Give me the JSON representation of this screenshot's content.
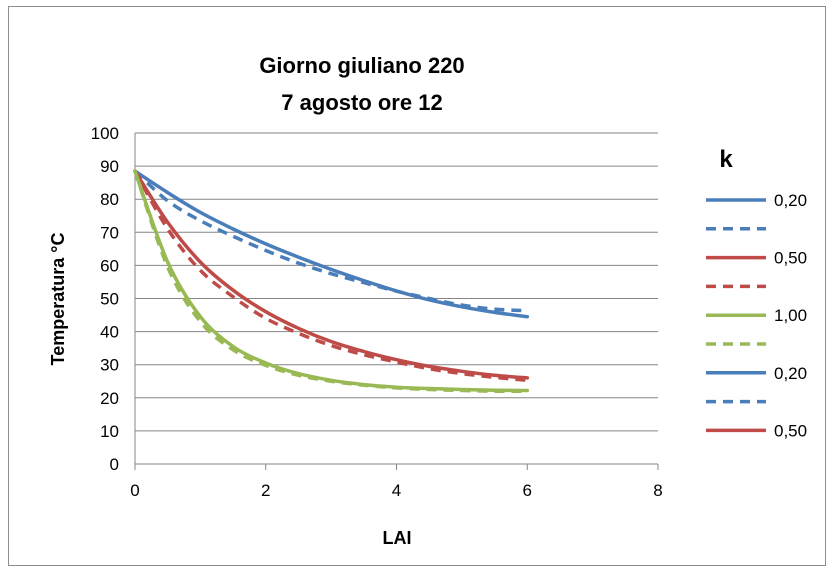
{
  "chart_data": {
    "type": "line",
    "title_lines": [
      "Giorno giuliano 220",
      "7 agosto ore 12"
    ],
    "xlabel": "LAI",
    "ylabel": "Temperatura °C",
    "xlim": [
      0,
      8
    ],
    "ylim": [
      0,
      100
    ],
    "x_ticks": [
      "0",
      "2",
      "4",
      "6",
      "8"
    ],
    "y_ticks": [
      "0",
      "10",
      "20",
      "30",
      "40",
      "50",
      "60",
      "70",
      "80",
      "90",
      "100"
    ],
    "grid": "horizontal",
    "legend_title": "k",
    "legend_position": "right",
    "colors": {
      "blue": "#4a7ebb",
      "red": "#be4b48",
      "green": "#98b954"
    },
    "x": [
      0,
      0.5,
      1,
      1.5,
      2,
      2.5,
      3,
      3.5,
      4,
      4.5,
      5,
      5.5,
      6
    ],
    "series": [
      {
        "name": "0,20",
        "color": "#4a7ebb",
        "dash": "solid",
        "values": [
          88.5,
          82,
          76,
          71,
          66.5,
          62.5,
          58.8,
          55.4,
          52.3,
          49.6,
          47.5,
          45.8,
          44.5
        ]
      },
      {
        "name": "",
        "color": "#4a7ebb",
        "dash": "dashed",
        "values": [
          88.5,
          79.5,
          73.5,
          68.8,
          64.5,
          60.7,
          57.5,
          54.8,
          52.2,
          50,
          48,
          46.8,
          46.3
        ]
      },
      {
        "name": "0,50",
        "color": "#be4b48",
        "dash": "solid",
        "values": [
          88.5,
          73,
          61,
          52.5,
          46,
          41,
          37,
          34,
          31.5,
          29.5,
          28,
          26.8,
          26
        ]
      },
      {
        "name": "",
        "color": "#be4b48",
        "dash": "dashed",
        "values": [
          88.5,
          71,
          58.5,
          50.5,
          44,
          39.5,
          35.8,
          33,
          30.8,
          28.8,
          27.3,
          26.2,
          25.3
        ]
      },
      {
        "name": "1,00",
        "color": "#98b954",
        "dash": "solid",
        "values": [
          88.5,
          61,
          44.5,
          35.5,
          30.5,
          27.3,
          25.3,
          24,
          23.2,
          22.8,
          22.5,
          22.3,
          22.2
        ]
      },
      {
        "name": "",
        "color": "#98b954",
        "dash": "dashed",
        "values": [
          88.5,
          59.5,
          43,
          34.5,
          29.8,
          26.8,
          25,
          23.8,
          23,
          22.5,
          22.2,
          22,
          22
        ]
      }
    ],
    "legend": [
      {
        "label": "0,20",
        "color": "#4a7ebb",
        "dash": "solid"
      },
      {
        "label": "",
        "color": "#4a7ebb",
        "dash": "dashed"
      },
      {
        "label": "0,50",
        "color": "#be4b48",
        "dash": "solid"
      },
      {
        "label": "",
        "color": "#be4b48",
        "dash": "dashed"
      },
      {
        "label": "1,00",
        "color": "#98b954",
        "dash": "solid"
      },
      {
        "label": "",
        "color": "#98b954",
        "dash": "dashed"
      },
      {
        "label": "0,20",
        "color": "#4a7ebb",
        "dash": "solid"
      },
      {
        "label": "",
        "color": "#4a7ebb",
        "dash": "dashed"
      },
      {
        "label": "0,50",
        "color": "#be4b48",
        "dash": "solid"
      }
    ]
  }
}
